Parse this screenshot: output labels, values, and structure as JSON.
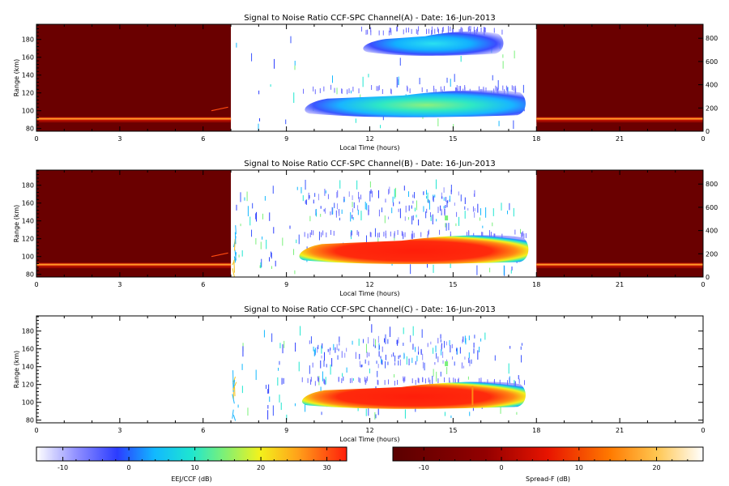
{
  "chart_data": {
    "type": "heatmap",
    "panels": [
      {
        "title": "Signal to Noise Ratio CCF-SPC Channel(A) - Date: 16-Jun-2013",
        "xlabel": "Local Time (hours)",
        "ylabel": "Range (km)",
        "x_ticks": [
          "0",
          "3",
          "6",
          "9",
          "12",
          "15",
          "18",
          "21",
          "0"
        ],
        "y_ticks": [
          "80",
          "100",
          "120",
          "140",
          "160",
          "180"
        ],
        "right_ticks": [
          "0",
          "200",
          "400",
          "600",
          "800"
        ],
        "xlim": [
          0,
          24
        ],
        "ylim": [
          77,
          197
        ],
        "right_lim": [
          0,
          920
        ],
        "spreadf_periods": [
          [
            0,
            7.0
          ],
          [
            18.0,
            24
          ]
        ],
        "spreadf_band_km": 91,
        "eej_layers": [
          {
            "start": 9.6,
            "end": 17.6,
            "bottom_km": 94,
            "top_km": 122,
            "peak_db": 8,
            "color": "cyan-green"
          },
          {
            "start": 11.7,
            "end": 16.8,
            "bottom_km": 163,
            "top_km": 188,
            "peak_db": 5,
            "color": "cyan"
          }
        ]
      },
      {
        "title": "Signal to Noise Ratio CCF-SPC Channel(B) - Date: 16-Jun-2013",
        "xlabel": "Local Time (hours)",
        "ylabel": "Range (km)",
        "x_ticks": [
          "0",
          "3",
          "6",
          "9",
          "12",
          "15",
          "18",
          "21",
          "0"
        ],
        "y_ticks": [
          "80",
          "100",
          "120",
          "140",
          "160",
          "180"
        ],
        "right_ticks": [
          "0",
          "200",
          "400",
          "600",
          "800"
        ],
        "xlim": [
          0,
          24
        ],
        "ylim": [
          77,
          197
        ],
        "right_lim": [
          0,
          920
        ],
        "spreadf_periods": [
          [
            0,
            7.0
          ],
          [
            18.0,
            24
          ]
        ],
        "spreadf_band_km": 91,
        "eej_layers": [
          {
            "start": 9.4,
            "end": 17.7,
            "bottom_km": 93,
            "top_km": 123,
            "peak_db": 30,
            "color": "red"
          },
          {
            "start": 9.5,
            "end": 15.9,
            "bottom_km": 140,
            "top_km": 172,
            "peak_db": -5,
            "color": "scattered"
          }
        ]
      },
      {
        "title": "Signal to Noise Ratio CCF-SPC Channel(C) - Date: 16-Jun-2013",
        "xlabel": "Local Time (hours)",
        "ylabel": "Range (km)",
        "x_ticks": [
          "0",
          "3",
          "6",
          "9",
          "12",
          "15",
          "18",
          "21",
          "0"
        ],
        "y_ticks": [
          "80",
          "100",
          "120",
          "140",
          "160",
          "180"
        ],
        "xlim": [
          0,
          24
        ],
        "ylim": [
          77,
          197
        ],
        "spreadf_periods": [],
        "eej_layers": [
          {
            "start": 9.5,
            "end": 17.6,
            "bottom_km": 94,
            "top_km": 122,
            "peak_db": 30,
            "color": "red"
          },
          {
            "start": 9.8,
            "end": 15.8,
            "bottom_km": 138,
            "top_km": 168,
            "peak_db": -5,
            "color": "scattered"
          }
        ]
      }
    ],
    "colorbars": [
      {
        "label": "EEJ/CCF (dB)",
        "ticks": [
          "-10",
          "0",
          "10",
          "20",
          "30"
        ],
        "range": [
          -14,
          33
        ],
        "colormap": "white-blue-cyan-green-yellow-red"
      },
      {
        "label": "Spread-F (dB)",
        "ticks": [
          "-10",
          "0",
          "10",
          "20"
        ],
        "range": [
          -14,
          26
        ],
        "colormap": "darkred-red-orange-white"
      }
    ]
  }
}
